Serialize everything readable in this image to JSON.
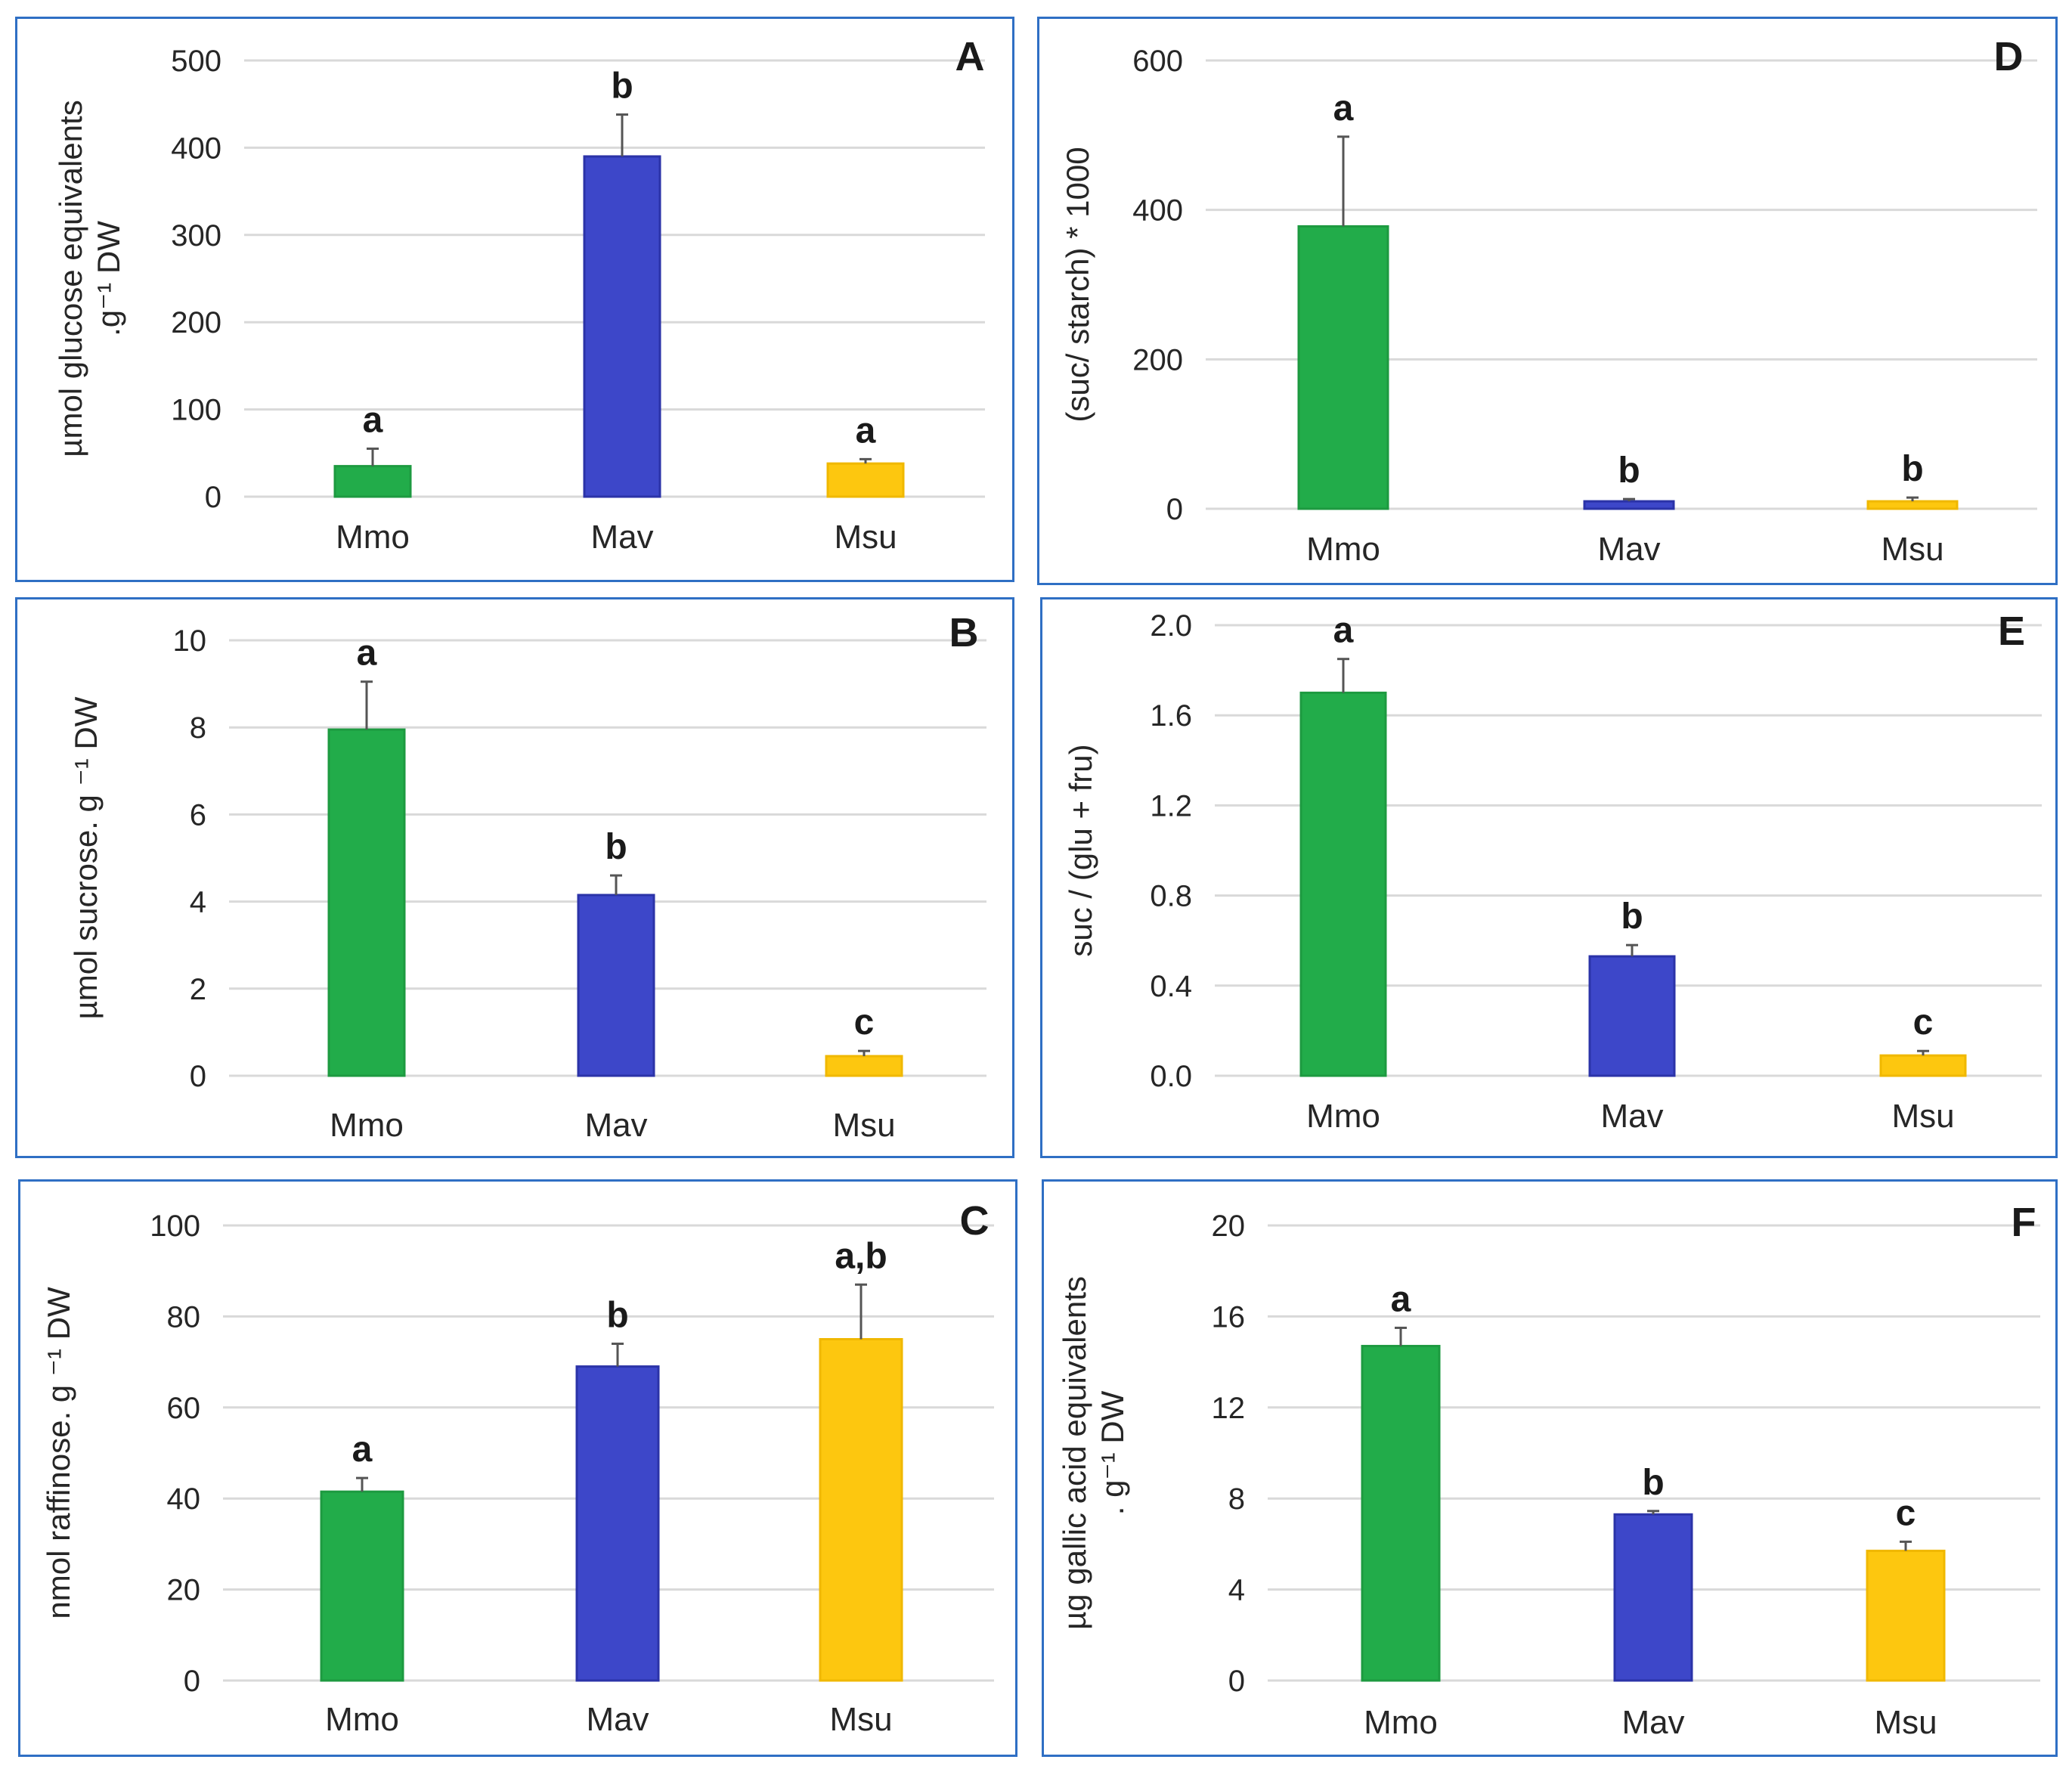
{
  "colors": {
    "Mmo": "#22ac4a",
    "Mav": "#3d47c9",
    "Msu": "#fdc70f",
    "bar_edge_Mmo": "#1d9a40",
    "bar_edge_Mav": "#2b33a8",
    "bar_edge_Msu": "#f0b800"
  },
  "chart_data": [
    {
      "id": "A",
      "type": "bar",
      "panel_label": "A",
      "categories": [
        "Mmo",
        "Mav",
        "Msu"
      ],
      "values": [
        35,
        390,
        38
      ],
      "errors": [
        20,
        48,
        5
      ],
      "significance": [
        "a",
        "b",
        "a"
      ],
      "ylabel_lines": [
        "µmol glucose equivalents",
        ".g⁻¹ DW"
      ],
      "ylim": [
        0,
        500
      ],
      "yticks": [
        "0",
        "100",
        "200",
        "300",
        "400",
        "500"
      ],
      "ytick_values": [
        0,
        100,
        200,
        300,
        400,
        500
      ],
      "grid": true
    },
    {
      "id": "D",
      "type": "bar",
      "panel_label": "D",
      "categories": [
        "Mmo",
        "Mav",
        "Msu"
      ],
      "values": [
        378,
        10,
        10
      ],
      "errors": [
        120,
        3,
        5
      ],
      "significance": [
        "a",
        "b",
        "b"
      ],
      "ylabel_lines": [
        "(suc/ starch) * 1000"
      ],
      "ylim": [
        0,
        600
      ],
      "yticks": [
        "0",
        "200",
        "400",
        "600"
      ],
      "ytick_values": [
        0,
        200,
        400,
        600
      ],
      "grid": true
    },
    {
      "id": "B",
      "type": "bar",
      "panel_label": "B",
      "categories": [
        "Mmo",
        "Mav",
        "Msu"
      ],
      "values": [
        7.95,
        4.15,
        0.45
      ],
      "errors": [
        1.1,
        0.45,
        0.12
      ],
      "significance": [
        "a",
        "b",
        "c"
      ],
      "ylabel_lines": [
        "µmol sucrose. g ⁻¹ DW"
      ],
      "ylim": [
        0,
        10
      ],
      "yticks": [
        "0",
        "2",
        "4",
        "6",
        "8",
        "10"
      ],
      "ytick_values": [
        0,
        2,
        4,
        6,
        8,
        10
      ],
      "grid": true
    },
    {
      "id": "E",
      "type": "bar",
      "panel_label": "E",
      "categories": [
        "Mmo",
        "Mav",
        "Msu"
      ],
      "values": [
        1.7,
        0.53,
        0.09
      ],
      "errors": [
        0.15,
        0.05,
        0.02
      ],
      "significance": [
        "a",
        "b",
        "c"
      ],
      "ylabel_lines": [
        "suc / (glu + fru)"
      ],
      "ylim": [
        0,
        2
      ],
      "yticks": [
        "0.0",
        "0.4",
        "0.8",
        "1.2",
        "1.6",
        "2.0"
      ],
      "ytick_values": [
        0,
        0.4,
        0.8,
        1.2,
        1.6,
        2.0
      ],
      "grid": true
    },
    {
      "id": "C",
      "type": "bar",
      "panel_label": "C",
      "categories": [
        "Mmo",
        "Mav",
        "Msu"
      ],
      "values": [
        41.5,
        69,
        75
      ],
      "errors": [
        3,
        5,
        12
      ],
      "significance": [
        "a",
        "b",
        "a,b"
      ],
      "ylabel_lines": [
        "nmol raffinose. g ⁻¹ DW"
      ],
      "ylim": [
        0,
        100
      ],
      "yticks": [
        "0",
        "20",
        "40",
        "60",
        "80",
        "100"
      ],
      "ytick_values": [
        0,
        20,
        40,
        60,
        80,
        100
      ],
      "grid": true
    },
    {
      "id": "F",
      "type": "bar",
      "panel_label": "F",
      "categories": [
        "Mmo",
        "Mav",
        "Msu"
      ],
      "values": [
        14.7,
        7.3,
        5.7
      ],
      "errors": [
        0.8,
        0.15,
        0.4
      ],
      "significance": [
        "a",
        "b",
        "c"
      ],
      "ylabel_lines": [
        "µg gallic acid equivalents",
        ". g⁻¹ DW"
      ],
      "ylim": [
        0,
        20
      ],
      "yticks": [
        "0",
        "4",
        "8",
        "12",
        "16",
        "20"
      ],
      "ytick_values": [
        0,
        4,
        8,
        12,
        16,
        20
      ],
      "grid": true
    }
  ]
}
